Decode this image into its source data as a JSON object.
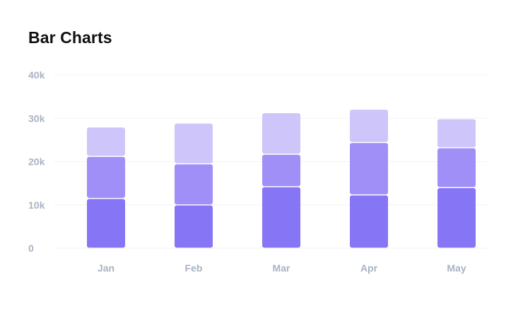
{
  "title": "Bar Charts",
  "chart_data": {
    "type": "bar",
    "stacked": true,
    "title": "Bar Charts",
    "categories": [
      "Jan",
      "Feb",
      "Mar",
      "Apr",
      "May"
    ],
    "series": [
      {
        "values": [
          11500,
          10000,
          14200,
          12300,
          14000
        ],
        "color": "#8675f5"
      },
      {
        "values": [
          9700,
          9500,
          7500,
          12100,
          9200
        ],
        "color": "#9f8ff7"
      },
      {
        "values": [
          6800,
          9400,
          9600,
          7700,
          6700
        ],
        "color": "#cec6fb"
      }
    ],
    "ylim": [
      0,
      40000
    ],
    "yticks": [
      0,
      10000,
      20000,
      30000,
      40000
    ],
    "ytick_labels": [
      "0",
      "10k",
      "20k",
      "30k",
      "40k"
    ],
    "grid": true,
    "legend": "none"
  }
}
